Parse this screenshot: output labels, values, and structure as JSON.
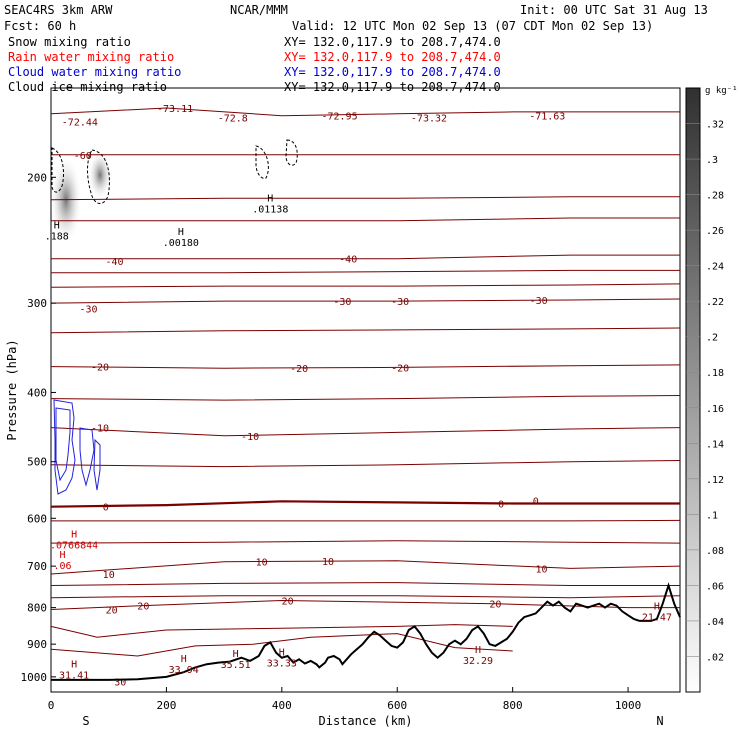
{
  "header": {
    "model": "SEAC4RS  3km ARW",
    "org": "NCAR/MMM",
    "init": "Init: 00 UTC Sat 31 Aug 13",
    "fcst": "Fcst:   60 h",
    "valid": "Valid: 12 UTC Mon 02 Sep 13 (07 CDT Mon 02 Sep 13)"
  },
  "fields": [
    {
      "label": "Snow mixing ratio",
      "xy": "XY= 132.0,117.9 to 208.7,474.0",
      "color": "#000000"
    },
    {
      "label": "Rain water mixing ratio",
      "xy": "XY= 132.0,117.9 to 208.7,474.0",
      "color": "#ff0000"
    },
    {
      "label": "Cloud water mixing ratio",
      "xy": "XY= 132.0,117.9 to 208.7,474.0",
      "color": "#0000cc"
    },
    {
      "label": "Cloud ice mixing ratio",
      "xy": "XY= 132.0,117.9 to 208.7,474.0",
      "color": "#000000"
    }
  ],
  "colors": {
    "temperature": "#7a0000",
    "cloud_water": "#2222dd",
    "terrain": "#000000",
    "axis": "#000000"
  },
  "chart_data": {
    "type": "line",
    "xlabel": "Distance (km)",
    "ylabel": "Pressure (hPa)",
    "xlim": [
      0,
      1090
    ],
    "ylim": [
      1050,
      150
    ],
    "y_scale": "log",
    "x_ticks": [
      "0",
      "200",
      "400",
      "600",
      "800",
      "1000"
    ],
    "y_ticks": [
      "200",
      "300",
      "400",
      "500",
      "600",
      "700",
      "800",
      "900",
      "1000"
    ],
    "end_labels": {
      "left": "S",
      "right": "N"
    },
    "colorbar": {
      "unit": "g kg⁻¹",
      "ticks": [
        ".02",
        ".04",
        ".06",
        ".08",
        ".1",
        ".12",
        ".14",
        ".16",
        ".18",
        ".2",
        ".22",
        ".24",
        ".26",
        ".28",
        ".3",
        ".32"
      ]
    },
    "isotherm_labels": [
      {
        "t": "-72.44",
        "x": 50,
        "p": 167
      },
      {
        "t": "-73.11",
        "x": 215,
        "p": 160
      },
      {
        "t": "-72.8",
        "x": 315,
        "p": 165
      },
      {
        "t": "-72.95",
        "x": 500,
        "p": 164
      },
      {
        "t": "-73.32",
        "x": 655,
        "p": 165
      },
      {
        "t": "-71.63",
        "x": 860,
        "p": 164
      },
      {
        "t": "-60",
        "x": 55,
        "p": 186
      },
      {
        "t": "-40",
        "x": 110,
        "p": 262
      },
      {
        "t": "-40",
        "x": 515,
        "p": 260
      },
      {
        "t": "-30",
        "x": 65,
        "p": 305
      },
      {
        "t": "-30",
        "x": 505,
        "p": 298
      },
      {
        "t": "-30",
        "x": 605,
        "p": 298
      },
      {
        "t": "-30",
        "x": 845,
        "p": 297
      },
      {
        "t": "-20",
        "x": 85,
        "p": 368
      },
      {
        "t": "-20",
        "x": 430,
        "p": 370
      },
      {
        "t": "-20",
        "x": 605,
        "p": 369
      },
      {
        "t": "-10",
        "x": 85,
        "p": 448
      },
      {
        "t": "-10",
        "x": 345,
        "p": 460
      },
      {
        "t": "0",
        "x": 95,
        "p": 578
      },
      {
        "t": "0",
        "x": 780,
        "p": 572
      },
      {
        "t": "0",
        "x": 840,
        "p": 567
      },
      {
        "t": "10",
        "x": 100,
        "p": 718
      },
      {
        "t": "10",
        "x": 365,
        "p": 690
      },
      {
        "t": "10",
        "x": 480,
        "p": 688
      },
      {
        "t": "10",
        "x": 850,
        "p": 705
      },
      {
        "t": "20",
        "x": 105,
        "p": 805
      },
      {
        "t": "20",
        "x": 160,
        "p": 795
      },
      {
        "t": "20",
        "x": 410,
        "p": 782
      },
      {
        "t": "20",
        "x": 770,
        "p": 790
      },
      {
        "t": "30",
        "x": 120,
        "p": 1015
      }
    ],
    "point_labels": [
      {
        "t": "31.41",
        "x": 40,
        "p": 995
      },
      {
        "t": "33.94",
        "x": 230,
        "p": 978
      },
      {
        "t": "35.51",
        "x": 320,
        "p": 963
      },
      {
        "t": "33.33",
        "x": 400,
        "p": 958
      },
      {
        "t": "32.29",
        "x": 740,
        "p": 950
      },
      {
        "t": "21.47",
        "x": 1050,
        "p": 826
      },
      {
        "t": ".01138",
        "x": 380,
        "p": 222
      },
      {
        "t": ".00180",
        "x": 225,
        "p": 247
      },
      {
        "t": ".188",
        "x": 10,
        "p": 242
      },
      {
        "t": ".0766844",
        "x": 40,
        "p": 655
      },
      {
        "t": ".06",
        "x": 20,
        "p": 700
      }
    ],
    "terrain": [
      [
        0,
        1010
      ],
      [
        100,
        1010
      ],
      [
        150,
        1008
      ],
      [
        200,
        1000
      ],
      [
        230,
        985
      ],
      [
        250,
        970
      ],
      [
        270,
        960
      ],
      [
        290,
        955
      ],
      [
        310,
        952
      ],
      [
        330,
        940
      ],
      [
        345,
        950
      ],
      [
        360,
        935
      ],
      [
        370,
        905
      ],
      [
        380,
        895
      ],
      [
        390,
        925
      ],
      [
        400,
        940
      ],
      [
        410,
        935
      ],
      [
        420,
        955
      ],
      [
        430,
        945
      ],
      [
        440,
        958
      ],
      [
        450,
        950
      ],
      [
        460,
        960
      ],
      [
        465,
        970
      ],
      [
        475,
        955
      ],
      [
        480,
        940
      ],
      [
        490,
        935
      ],
      [
        500,
        945
      ],
      [
        505,
        960
      ],
      [
        520,
        930
      ],
      [
        530,
        915
      ],
      [
        540,
        900
      ],
      [
        550,
        880
      ],
      [
        560,
        865
      ],
      [
        570,
        875
      ],
      [
        580,
        890
      ],
      [
        590,
        905
      ],
      [
        600,
        910
      ],
      [
        610,
        895
      ],
      [
        620,
        860
      ],
      [
        630,
        850
      ],
      [
        640,
        870
      ],
      [
        650,
        900
      ],
      [
        660,
        925
      ],
      [
        670,
        940
      ],
      [
        680,
        925
      ],
      [
        690,
        900
      ],
      [
        700,
        890
      ],
      [
        710,
        900
      ],
      [
        720,
        885
      ],
      [
        730,
        860
      ],
      [
        740,
        850
      ],
      [
        750,
        870
      ],
      [
        760,
        900
      ],
      [
        770,
        905
      ],
      [
        780,
        895
      ],
      [
        790,
        885
      ],
      [
        800,
        865
      ],
      [
        810,
        840
      ],
      [
        820,
        825
      ],
      [
        830,
        820
      ],
      [
        840,
        815
      ],
      [
        850,
        800
      ],
      [
        860,
        785
      ],
      [
        870,
        795
      ],
      [
        880,
        785
      ],
      [
        890,
        800
      ],
      [
        900,
        810
      ],
      [
        910,
        790
      ],
      [
        920,
        795
      ],
      [
        930,
        800
      ],
      [
        940,
        795
      ],
      [
        950,
        790
      ],
      [
        960,
        800
      ],
      [
        970,
        790
      ],
      [
        980,
        795
      ],
      [
        990,
        810
      ],
      [
        1000,
        820
      ],
      [
        1010,
        830
      ],
      [
        1020,
        835
      ],
      [
        1040,
        835
      ],
      [
        1050,
        830
      ],
      [
        1060,
        790
      ],
      [
        1070,
        745
      ],
      [
        1080,
        790
      ],
      [
        1090,
        825
      ]
    ],
    "series": [
      {
        "level": -72,
        "thick": false,
        "points": [
          [
            0,
            163
          ],
          [
            200,
            160
          ],
          [
            400,
            164
          ],
          [
            600,
            163
          ],
          [
            800,
            162
          ],
          [
            1090,
            162
          ]
        ]
      },
      {
        "level": -60,
        "thick": false,
        "points": [
          [
            0,
            186
          ],
          [
            300,
            186
          ],
          [
            600,
            186
          ],
          [
            900,
            186
          ],
          [
            1090,
            186
          ]
        ]
      },
      {
        "level": -50,
        "thick": false,
        "points": [
          [
            0,
            215
          ],
          [
            300,
            214
          ],
          [
            600,
            214
          ],
          [
            900,
            213
          ],
          [
            1090,
            213
          ]
        ]
      },
      {
        "level": -45,
        "thick": false,
        "points": [
          [
            0,
            230
          ],
          [
            300,
            230
          ],
          [
            600,
            230
          ],
          [
            900,
            228
          ],
          [
            1090,
            228
          ]
        ]
      },
      {
        "level": -40,
        "thick": false,
        "points": [
          [
            0,
            260
          ],
          [
            300,
            260
          ],
          [
            600,
            260
          ],
          [
            900,
            257
          ],
          [
            1090,
            257
          ]
        ]
      },
      {
        "level": -35,
        "thick": false,
        "points": [
          [
            0,
            272
          ],
          [
            300,
            272
          ],
          [
            600,
            271
          ],
          [
            900,
            270
          ],
          [
            1090,
            270
          ]
        ]
      },
      {
        "level": -32,
        "thick": false,
        "points": [
          [
            0,
            285
          ],
          [
            300,
            284
          ],
          [
            600,
            284
          ],
          [
            900,
            283
          ],
          [
            1090,
            282
          ]
        ]
      },
      {
        "level": -30,
        "thick": false,
        "points": [
          [
            0,
            300
          ],
          [
            300,
            298
          ],
          [
            600,
            298
          ],
          [
            900,
            297
          ],
          [
            1090,
            296
          ]
        ]
      },
      {
        "level": -25,
        "thick": false,
        "points": [
          [
            0,
            330
          ],
          [
            300,
            328
          ],
          [
            600,
            327
          ],
          [
            900,
            326
          ],
          [
            1090,
            325
          ]
        ]
      },
      {
        "level": -20,
        "thick": false,
        "points": [
          [
            0,
            368
          ],
          [
            300,
            370
          ],
          [
            600,
            369
          ],
          [
            900,
            367
          ],
          [
            1090,
            366
          ]
        ]
      },
      {
        "level": -15,
        "thick": false,
        "points": [
          [
            0,
            408
          ],
          [
            300,
            410
          ],
          [
            600,
            408
          ],
          [
            900,
            405
          ],
          [
            1090,
            404
          ]
        ]
      },
      {
        "level": -10,
        "thick": false,
        "points": [
          [
            0,
            448
          ],
          [
            300,
            460
          ],
          [
            600,
            455
          ],
          [
            900,
            450
          ],
          [
            1090,
            448
          ]
        ]
      },
      {
        "level": -5,
        "thick": false,
        "points": [
          [
            0,
            505
          ],
          [
            300,
            508
          ],
          [
            600,
            505
          ],
          [
            900,
            500
          ],
          [
            1090,
            498
          ]
        ]
      },
      {
        "level": 0,
        "thick": true,
        "points": [
          [
            0,
            578
          ],
          [
            200,
            575
          ],
          [
            400,
            568
          ],
          [
            600,
            570
          ],
          [
            800,
            572
          ],
          [
            1090,
            572
          ]
        ]
      },
      {
        "level": 3,
        "thick": false,
        "points": [
          [
            0,
            605
          ],
          [
            300,
            605
          ],
          [
            600,
            605
          ],
          [
            900,
            605
          ],
          [
            1090,
            604
          ]
        ]
      },
      {
        "level": 5,
        "thick": false,
        "points": [
          [
            0,
            650
          ],
          [
            300,
            648
          ],
          [
            600,
            645
          ],
          [
            900,
            648
          ],
          [
            1090,
            650
          ]
        ]
      },
      {
        "level": 10,
        "thick": false,
        "points": [
          [
            0,
            718
          ],
          [
            300,
            690
          ],
          [
            600,
            688
          ],
          [
            900,
            705
          ],
          [
            1090,
            700
          ]
        ]
      },
      {
        "level": 15,
        "thick": false,
        "points": [
          [
            0,
            745
          ],
          [
            300,
            740
          ],
          [
            600,
            738
          ],
          [
            900,
            745
          ],
          [
            1090,
            745
          ]
        ]
      },
      {
        "level": 18,
        "thick": false,
        "points": [
          [
            0,
            775
          ],
          [
            300,
            770
          ],
          [
            600,
            770
          ],
          [
            900,
            775
          ],
          [
            1090,
            770
          ]
        ]
      },
      {
        "level": 20,
        "thick": false,
        "points": [
          [
            0,
            805
          ],
          [
            160,
            795
          ],
          [
            400,
            782
          ],
          [
            770,
            790
          ],
          [
            1000,
            800
          ],
          [
            1090,
            800
          ]
        ]
      },
      {
        "level": 22,
        "thick": false,
        "points": [
          [
            0,
            850
          ],
          [
            80,
            880
          ],
          [
            200,
            860
          ],
          [
            400,
            855
          ],
          [
            600,
            850
          ],
          [
            700,
            845
          ],
          [
            800,
            850
          ]
        ]
      },
      {
        "level": 25,
        "thick": false,
        "points": [
          [
            0,
            915
          ],
          [
            150,
            935
          ],
          [
            250,
            905
          ],
          [
            350,
            900
          ],
          [
            450,
            880
          ],
          [
            600,
            870
          ],
          [
            700,
            910
          ],
          [
            800,
            920
          ]
        ]
      }
    ]
  }
}
